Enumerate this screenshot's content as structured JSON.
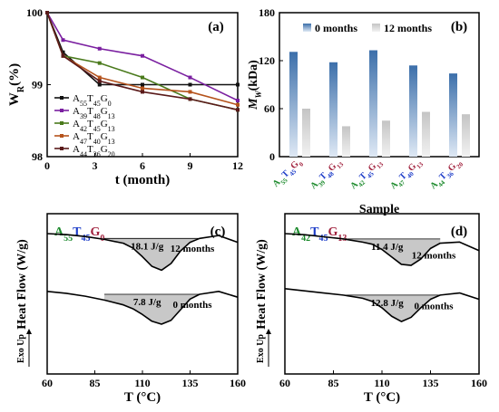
{
  "colors": {
    "G0": "#111111",
    "G13_purple": "#7a1fa0",
    "G13_green": "#4a7a1c",
    "G13_orange": "#b5531c",
    "G20": "#5a1a1a",
    "bar_0": "#3c6faa",
    "bar_12": "#d3d3d3",
    "shade": "#c8c8c8",
    "A": "#1c8a2c",
    "T": "#1c3cc8",
    "G": "#a0203c"
  },
  "chart_data": [
    {
      "type": "line",
      "panel_label": "(a)",
      "xlabel": "t (month)",
      "ylabel": "W_R(%)",
      "xlim": [
        0,
        12
      ],
      "ylim": [
        98,
        100
      ],
      "xticks": [
        "0",
        "3",
        "6",
        "9",
        "12"
      ],
      "yticks": [
        "98",
        "99",
        "100"
      ],
      "legend_position": "middle-left",
      "series": [
        {
          "name": "A55T45G0",
          "A": "55",
          "T": "45",
          "G": "0",
          "x": [
            0,
            1,
            3.3,
            6,
            9,
            12
          ],
          "y": [
            100,
            99.45,
            99.0,
            99.0,
            99.0,
            99.0
          ]
        },
        {
          "name": "A39T48G13",
          "A": "39",
          "T": "48",
          "G": "13",
          "x": [
            0,
            1,
            3.3,
            6,
            9,
            12
          ],
          "y": [
            100,
            99.62,
            99.5,
            99.4,
            99.1,
            98.78
          ]
        },
        {
          "name": "A42T45G13",
          "A": "42",
          "T": "45",
          "G": "13",
          "x": [
            0,
            1,
            3.3,
            6,
            9,
            12
          ],
          "y": [
            100,
            99.4,
            99.3,
            99.1,
            98.8,
            98.65
          ]
        },
        {
          "name": "A47T40G13",
          "A": "47",
          "T": "40",
          "G": "13",
          "x": [
            0,
            1,
            3.3,
            6,
            9,
            12
          ],
          "y": [
            100,
            99.4,
            99.1,
            98.95,
            98.9,
            98.72
          ]
        },
        {
          "name": "A44T36G20",
          "A": "44",
          "T": "36",
          "G": "20",
          "x": [
            0,
            1,
            3.3,
            6,
            9,
            12
          ],
          "y": [
            100,
            99.4,
            99.05,
            98.9,
            98.8,
            98.65
          ]
        }
      ]
    },
    {
      "type": "bar",
      "panel_label": "(b)",
      "xlabel": "Sample",
      "ylabel": "Mw(kDa)",
      "ylim": [
        0,
        180
      ],
      "yticks": [
        "0",
        "60",
        "120",
        "180"
      ],
      "legend_position": "top",
      "categories": [
        {
          "A": "55",
          "T": "45",
          "G": "0"
        },
        {
          "A": "39",
          "T": "48",
          "G": "13"
        },
        {
          "A": "42",
          "T": "45",
          "G": "13"
        },
        {
          "A": "47",
          "T": "40",
          "G": "13"
        },
        {
          "A": "44",
          "T": "36",
          "G": "20"
        }
      ],
      "series": [
        {
          "name": "0 months",
          "values": [
            131,
            118,
            133,
            114,
            104
          ]
        },
        {
          "name": "12 months",
          "values": [
            60,
            38,
            45,
            56,
            53
          ]
        }
      ]
    },
    {
      "type": "line",
      "panel_label": "(c)",
      "sample": {
        "A": "55",
        "T": "45",
        "G": "0"
      },
      "xlabel": "T (°C)",
      "ylabel": "Heat Flow (W/g)",
      "exo_label": "Exo Up",
      "xlim": [
        60,
        160
      ],
      "xticks": [
        "60",
        "85",
        "110",
        "135",
        "160"
      ],
      "curves": [
        {
          "name": "12 months",
          "enthalpy": "18.1 J/g",
          "x": [
            60,
            70,
            80,
            90,
            100,
            105,
            110,
            115,
            120,
            125,
            130,
            135,
            140,
            150,
            160
          ],
          "y": [
            0,
            -0.1,
            -0.3,
            -0.6,
            -1.0,
            -1.5,
            -2.4,
            -3.4,
            -3.8,
            -3.1,
            -1.8,
            -0.9,
            -0.5,
            -0.2,
            -0.9
          ]
        },
        {
          "name": "0 months",
          "enthalpy": "7.8 J/g",
          "x": [
            60,
            70,
            80,
            90,
            100,
            105,
            110,
            115,
            120,
            125,
            130,
            135,
            140,
            150,
            160
          ],
          "y": [
            -6.0,
            -6.2,
            -6.5,
            -6.9,
            -7.4,
            -7.8,
            -8.4,
            -9.1,
            -9.4,
            -9.0,
            -7.9,
            -6.8,
            -6.3,
            -6.0,
            -6.6
          ]
        }
      ]
    },
    {
      "type": "line",
      "panel_label": "(d)",
      "sample": {
        "A": "42",
        "T": "45",
        "G": "13"
      },
      "xlabel": "T (°C)",
      "ylabel": "Heat Flow (W/g)",
      "exo_label": "Exo Up",
      "xlim": [
        60,
        160
      ],
      "xticks": [
        "60",
        "85",
        "110",
        "135",
        "160"
      ],
      "curves": [
        {
          "name": "12 months",
          "enthalpy": "11.4 J/g",
          "x": [
            60,
            70,
            80,
            90,
            100,
            105,
            110,
            115,
            120,
            125,
            130,
            135,
            140,
            150,
            160
          ],
          "y": [
            0,
            -0.1,
            -0.3,
            -0.5,
            -0.8,
            -1.0,
            -1.5,
            -2.2,
            -2.9,
            -3.0,
            -2.4,
            -1.4,
            -0.9,
            -0.8,
            -1.6
          ]
        },
        {
          "name": "0 months",
          "enthalpy": "12.8 J/g",
          "x": [
            60,
            70,
            80,
            90,
            100,
            105,
            110,
            115,
            120,
            125,
            130,
            135,
            140,
            150,
            160
          ],
          "y": [
            -5.2,
            -5.4,
            -5.6,
            -5.8,
            -6.1,
            -6.4,
            -7.0,
            -7.8,
            -8.3,
            -7.9,
            -7.0,
            -6.2,
            -5.8,
            -5.6,
            -6.2
          ]
        }
      ]
    }
  ]
}
